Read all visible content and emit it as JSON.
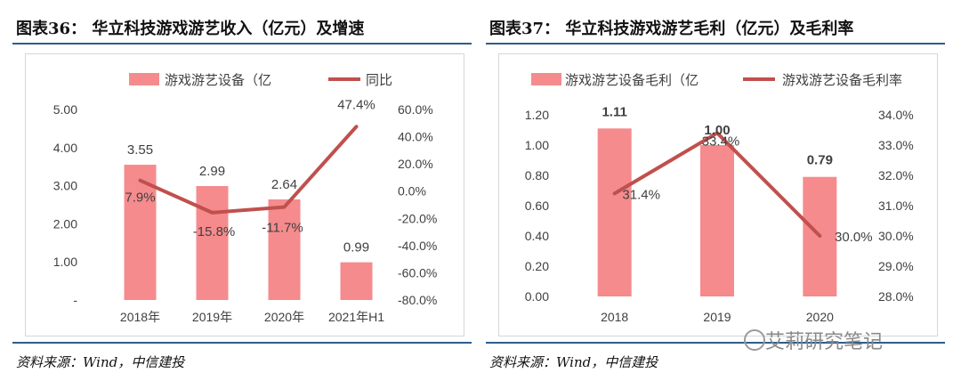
{
  "figures": [
    {
      "title": "图表36： 华立科技游戏游艺收入（亿元）及增速",
      "source": "资料来源：Wind，中信建投"
    },
    {
      "title": "图表37： 华立科技游戏游艺毛利（亿元）及毛利率",
      "source": "资料来源：Wind，中信建投"
    }
  ],
  "watermark": "艾莉研究笔记",
  "chart_data": [
    {
      "type": "bar",
      "categories": [
        "2018年",
        "2019年",
        "2020年",
        "2021年H1"
      ],
      "series": [
        {
          "name": "游戏游艺设备（亿",
          "kind": "bar",
          "axis": "left",
          "values": [
            3.55,
            2.99,
            2.64,
            0.99
          ],
          "labels": [
            "3.55",
            "2.99",
            "2.64",
            "0.99"
          ],
          "color": "#f58b8d"
        },
        {
          "name": "同比",
          "kind": "line",
          "axis": "right",
          "values": [
            7.9,
            -15.8,
            -11.7,
            47.4
          ],
          "labels": [
            "7.9%",
            "-15.8%",
            "-11.7%",
            "47.4%"
          ],
          "color": "#c0504d"
        }
      ],
      "y_left": {
        "ylim": [
          0,
          5
        ],
        "ticks": [
          "-",
          "1.00",
          "2.00",
          "3.00",
          "4.00",
          "5.00"
        ]
      },
      "y_right": {
        "ylim": [
          -80,
          60
        ],
        "ticks": [
          "-80.0%",
          "-60.0%",
          "-40.0%",
          "-20.0%",
          "0.0%",
          "20.0%",
          "40.0%",
          "60.0%"
        ]
      },
      "legend": "top-center",
      "grid": false
    },
    {
      "type": "bar",
      "categories": [
        "2018",
        "2019",
        "2020"
      ],
      "series": [
        {
          "name": "游戏游艺设备毛利（亿",
          "kind": "bar",
          "axis": "left",
          "values": [
            1.11,
            1.0,
            0.79
          ],
          "labels": [
            "1.11",
            "1.00",
            "0.79"
          ],
          "color": "#f58b8d"
        },
        {
          "name": "游戏游艺设备毛利率",
          "kind": "line",
          "axis": "right",
          "values": [
            31.4,
            33.4,
            30.0
          ],
          "labels": [
            "31.4%",
            "33.4%",
            "30.0%"
          ],
          "color": "#c0504d"
        }
      ],
      "y_left": {
        "ylim": [
          0,
          1.2
        ],
        "ticks": [
          "0.00",
          "0.20",
          "0.40",
          "0.60",
          "0.80",
          "1.00",
          "1.20"
        ]
      },
      "y_right": {
        "ylim": [
          28,
          34
        ],
        "ticks": [
          "28.0%",
          "29.0%",
          "30.0%",
          "31.0%",
          "32.0%",
          "33.0%",
          "34.0%"
        ]
      },
      "legend": "top-center",
      "grid": false
    }
  ]
}
